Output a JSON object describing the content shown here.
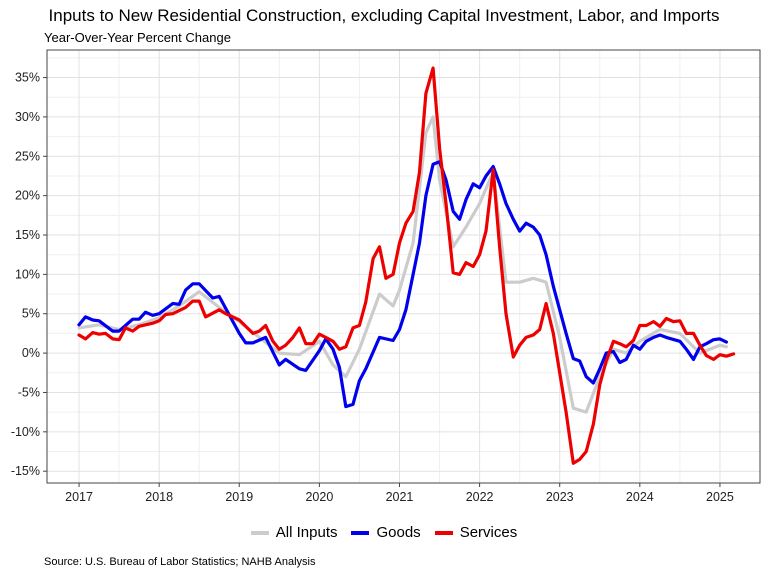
{
  "chart_data": {
    "type": "line",
    "title": "Inputs to New Residential Construction, excluding Capital Investment, Labor, and Imports",
    "subtitle": "Year-Over-Year Percent Change",
    "source": "Source: U.S. Bureau of Labor Statistics; NAHB Analysis",
    "x_ticks": [
      "2017",
      "2018",
      "2019",
      "2020",
      "2021",
      "2022",
      "2023",
      "2024",
      "2025"
    ],
    "y_ticks": [
      "-15%",
      "-10%",
      "-5%",
      "0%",
      "5%",
      "10%",
      "15%",
      "20%",
      "25%",
      "30%",
      "35%"
    ],
    "ylim": [
      -16.5,
      38.5
    ],
    "xlim": [
      2016.6,
      2025.5
    ],
    "grid": true,
    "legend_position": "bottom",
    "series": [
      {
        "name": "All Inputs",
        "color": "#cccccc",
        "points": [
          [
            2017.0,
            3.2
          ],
          [
            2017.25,
            3.6
          ],
          [
            2017.5,
            3.0
          ],
          [
            2017.75,
            3.6
          ],
          [
            2018.0,
            4.5
          ],
          [
            2018.25,
            6.0
          ],
          [
            2018.5,
            7.8
          ],
          [
            2018.75,
            5.8
          ],
          [
            2019.0,
            4.0
          ],
          [
            2019.25,
            2.0
          ],
          [
            2019.5,
            0.0
          ],
          [
            2019.75,
            -0.2
          ],
          [
            2020.0,
            1.5
          ],
          [
            2020.17,
            -1.5
          ],
          [
            2020.33,
            -3.0
          ],
          [
            2020.5,
            0.5
          ],
          [
            2020.75,
            7.5
          ],
          [
            2020.92,
            6.0
          ],
          [
            2021.0,
            8.0
          ],
          [
            2021.17,
            14.0
          ],
          [
            2021.33,
            28.0
          ],
          [
            2021.42,
            30.0
          ],
          [
            2021.5,
            22.0
          ],
          [
            2021.67,
            13.5
          ],
          [
            2021.83,
            16.0
          ],
          [
            2022.0,
            19.0
          ],
          [
            2022.17,
            23.0
          ],
          [
            2022.33,
            9.0
          ],
          [
            2022.5,
            9.0
          ],
          [
            2022.67,
            9.5
          ],
          [
            2022.83,
            9.0
          ],
          [
            2023.0,
            2.0
          ],
          [
            2023.17,
            -7.0
          ],
          [
            2023.33,
            -7.5
          ],
          [
            2023.5,
            -3.0
          ],
          [
            2023.67,
            0.5
          ],
          [
            2023.83,
            0.0
          ],
          [
            2024.0,
            1.5
          ],
          [
            2024.25,
            3.0
          ],
          [
            2024.5,
            2.5
          ],
          [
            2024.75,
            0.0
          ],
          [
            2025.0,
            1.0
          ],
          [
            2025.08,
            0.8
          ]
        ]
      },
      {
        "name": "Goods",
        "color": "#0000ee",
        "points": [
          [
            2017.0,
            3.6
          ],
          [
            2017.08,
            4.6
          ],
          [
            2017.17,
            4.2
          ],
          [
            2017.25,
            4.1
          ],
          [
            2017.42,
            2.8
          ],
          [
            2017.5,
            2.8
          ],
          [
            2017.67,
            4.3
          ],
          [
            2017.75,
            4.3
          ],
          [
            2017.83,
            5.2
          ],
          [
            2017.92,
            4.8
          ],
          [
            2018.0,
            5.0
          ],
          [
            2018.17,
            6.3
          ],
          [
            2018.25,
            6.2
          ],
          [
            2018.33,
            8.0
          ],
          [
            2018.42,
            8.8
          ],
          [
            2018.5,
            8.8
          ],
          [
            2018.67,
            7.0
          ],
          [
            2018.75,
            7.2
          ],
          [
            2018.92,
            4.0
          ],
          [
            2019.0,
            2.5
          ],
          [
            2019.08,
            1.3
          ],
          [
            2019.17,
            1.3
          ],
          [
            2019.33,
            2.0
          ],
          [
            2019.5,
            -1.5
          ],
          [
            2019.58,
            -0.8
          ],
          [
            2019.75,
            -2.0
          ],
          [
            2019.83,
            -2.2
          ],
          [
            2020.0,
            0.3
          ],
          [
            2020.08,
            1.8
          ],
          [
            2020.17,
            0.5
          ],
          [
            2020.25,
            -1.8
          ],
          [
            2020.33,
            -6.8
          ],
          [
            2020.42,
            -6.5
          ],
          [
            2020.5,
            -3.5
          ],
          [
            2020.58,
            -2.0
          ],
          [
            2020.75,
            2.0
          ],
          [
            2020.92,
            1.6
          ],
          [
            2021.0,
            3.0
          ],
          [
            2021.08,
            5.5
          ],
          [
            2021.17,
            10.0
          ],
          [
            2021.25,
            14.0
          ],
          [
            2021.33,
            20.0
          ],
          [
            2021.42,
            24.0
          ],
          [
            2021.5,
            24.3
          ],
          [
            2021.58,
            22.0
          ],
          [
            2021.67,
            18.0
          ],
          [
            2021.75,
            17.0
          ],
          [
            2021.83,
            19.5
          ],
          [
            2021.92,
            21.5
          ],
          [
            2022.0,
            21.0
          ],
          [
            2022.08,
            22.5
          ],
          [
            2022.17,
            23.7
          ],
          [
            2022.25,
            21.5
          ],
          [
            2022.33,
            19.0
          ],
          [
            2022.42,
            17.0
          ],
          [
            2022.5,
            15.5
          ],
          [
            2022.58,
            16.5
          ],
          [
            2022.67,
            16.0
          ],
          [
            2022.75,
            15.0
          ],
          [
            2022.83,
            12.5
          ],
          [
            2022.92,
            8.5
          ],
          [
            2023.0,
            5.5
          ],
          [
            2023.08,
            2.5
          ],
          [
            2023.17,
            -0.7
          ],
          [
            2023.25,
            -1.0
          ],
          [
            2023.33,
            -3.0
          ],
          [
            2023.42,
            -3.8
          ],
          [
            2023.5,
            -2.0
          ],
          [
            2023.58,
            0.0
          ],
          [
            2023.67,
            0.2
          ],
          [
            2023.75,
            -1.2
          ],
          [
            2023.83,
            -0.8
          ],
          [
            2023.92,
            1.0
          ],
          [
            2024.0,
            0.5
          ],
          [
            2024.08,
            1.5
          ],
          [
            2024.17,
            2.0
          ],
          [
            2024.25,
            2.3
          ],
          [
            2024.33,
            2.0
          ],
          [
            2024.5,
            1.5
          ],
          [
            2024.58,
            0.5
          ],
          [
            2024.67,
            -0.8
          ],
          [
            2024.75,
            0.8
          ],
          [
            2024.83,
            1.2
          ],
          [
            2024.92,
            1.7
          ],
          [
            2025.0,
            1.8
          ],
          [
            2025.08,
            1.4
          ]
        ]
      },
      {
        "name": "Services",
        "color": "#ee0000",
        "points": [
          [
            2017.0,
            2.3
          ],
          [
            2017.08,
            1.8
          ],
          [
            2017.17,
            2.6
          ],
          [
            2017.25,
            2.4
          ],
          [
            2017.33,
            2.5
          ],
          [
            2017.42,
            1.8
          ],
          [
            2017.5,
            1.7
          ],
          [
            2017.58,
            3.2
          ],
          [
            2017.67,
            2.8
          ],
          [
            2017.75,
            3.4
          ],
          [
            2017.92,
            3.8
          ],
          [
            2018.0,
            4.1
          ],
          [
            2018.08,
            4.9
          ],
          [
            2018.17,
            5.0
          ],
          [
            2018.33,
            5.8
          ],
          [
            2018.42,
            6.6
          ],
          [
            2018.5,
            6.6
          ],
          [
            2018.58,
            4.6
          ],
          [
            2018.75,
            5.5
          ],
          [
            2018.83,
            5.0
          ],
          [
            2018.92,
            4.6
          ],
          [
            2019.0,
            4.2
          ],
          [
            2019.17,
            2.5
          ],
          [
            2019.25,
            2.8
          ],
          [
            2019.33,
            3.5
          ],
          [
            2019.42,
            1.5
          ],
          [
            2019.5,
            0.5
          ],
          [
            2019.58,
            1.0
          ],
          [
            2019.67,
            2.0
          ],
          [
            2019.75,
            3.2
          ],
          [
            2019.83,
            1.2
          ],
          [
            2019.92,
            1.2
          ],
          [
            2020.0,
            2.4
          ],
          [
            2020.08,
            2.0
          ],
          [
            2020.17,
            1.5
          ],
          [
            2020.25,
            0.5
          ],
          [
            2020.33,
            0.8
          ],
          [
            2020.42,
            3.2
          ],
          [
            2020.5,
            3.5
          ],
          [
            2020.58,
            6.5
          ],
          [
            2020.67,
            12.0
          ],
          [
            2020.75,
            13.5
          ],
          [
            2020.83,
            9.5
          ],
          [
            2020.92,
            10.0
          ],
          [
            2021.0,
            14.0
          ],
          [
            2021.08,
            16.5
          ],
          [
            2021.17,
            18.0
          ],
          [
            2021.25,
            23.0
          ],
          [
            2021.33,
            33.0
          ],
          [
            2021.42,
            36.2
          ],
          [
            2021.5,
            26.0
          ],
          [
            2021.58,
            19.0
          ],
          [
            2021.67,
            10.2
          ],
          [
            2021.75,
            10.0
          ],
          [
            2021.83,
            11.5
          ],
          [
            2021.92,
            11.0
          ],
          [
            2022.0,
            12.5
          ],
          [
            2022.08,
            15.5
          ],
          [
            2022.17,
            23.3
          ],
          [
            2022.25,
            13.5
          ],
          [
            2022.33,
            5.0
          ],
          [
            2022.42,
            -0.5
          ],
          [
            2022.5,
            1.0
          ],
          [
            2022.58,
            2.0
          ],
          [
            2022.67,
            2.3
          ],
          [
            2022.75,
            3.0
          ],
          [
            2022.83,
            6.3
          ],
          [
            2022.92,
            2.5
          ],
          [
            2023.0,
            -2.5
          ],
          [
            2023.08,
            -7.5
          ],
          [
            2023.17,
            -14.0
          ],
          [
            2023.25,
            -13.5
          ],
          [
            2023.33,
            -12.5
          ],
          [
            2023.42,
            -9.0
          ],
          [
            2023.5,
            -4.0
          ],
          [
            2023.58,
            -1.0
          ],
          [
            2023.67,
            1.5
          ],
          [
            2023.75,
            1.2
          ],
          [
            2023.83,
            0.8
          ],
          [
            2023.92,
            1.6
          ],
          [
            2024.0,
            3.5
          ],
          [
            2024.08,
            3.5
          ],
          [
            2024.17,
            4.0
          ],
          [
            2024.25,
            3.4
          ],
          [
            2024.33,
            4.4
          ],
          [
            2024.42,
            4.0
          ],
          [
            2024.5,
            4.1
          ],
          [
            2024.58,
            2.5
          ],
          [
            2024.67,
            2.5
          ],
          [
            2024.75,
            1.0
          ],
          [
            2024.83,
            -0.3
          ],
          [
            2024.92,
            -0.8
          ],
          [
            2025.0,
            -0.2
          ],
          [
            2025.08,
            -0.4
          ],
          [
            2025.17,
            -0.1
          ]
        ]
      }
    ]
  }
}
